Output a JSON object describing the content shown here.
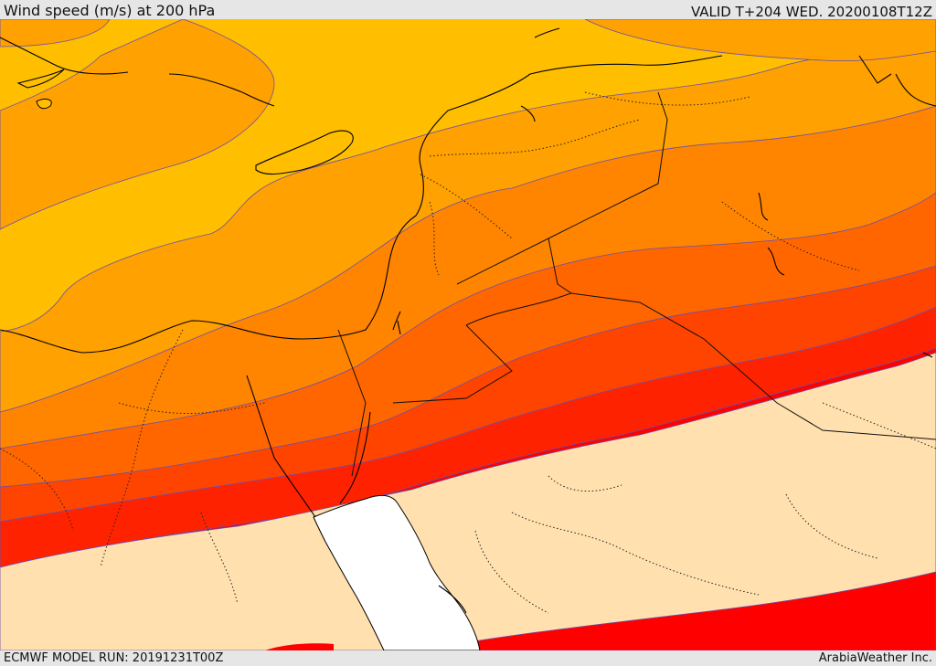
{
  "header": {
    "title": "Wind speed (m/s) at 200 hPa",
    "valid": "VALID T+204 WED. 20200108T12Z"
  },
  "footer": {
    "model_run": "ECMWF MODEL RUN: 20191231T00Z",
    "credit": "ArabiaWeather Inc."
  },
  "map": {
    "field": "wind speed at 200 hPa",
    "colors": {
      "band_1": "#ffbf00",
      "band_2": "#ffa100",
      "band_3": "#ff8400",
      "band_4": "#ff6600",
      "band_5": "#ff4400",
      "band_6": "#ff2200",
      "band_7": "#ff0000",
      "low": "#ffe0ae",
      "sea_mask": "#ffffff",
      "contour_line": "#6a4fb0",
      "coastline": "#000000"
    }
  }
}
